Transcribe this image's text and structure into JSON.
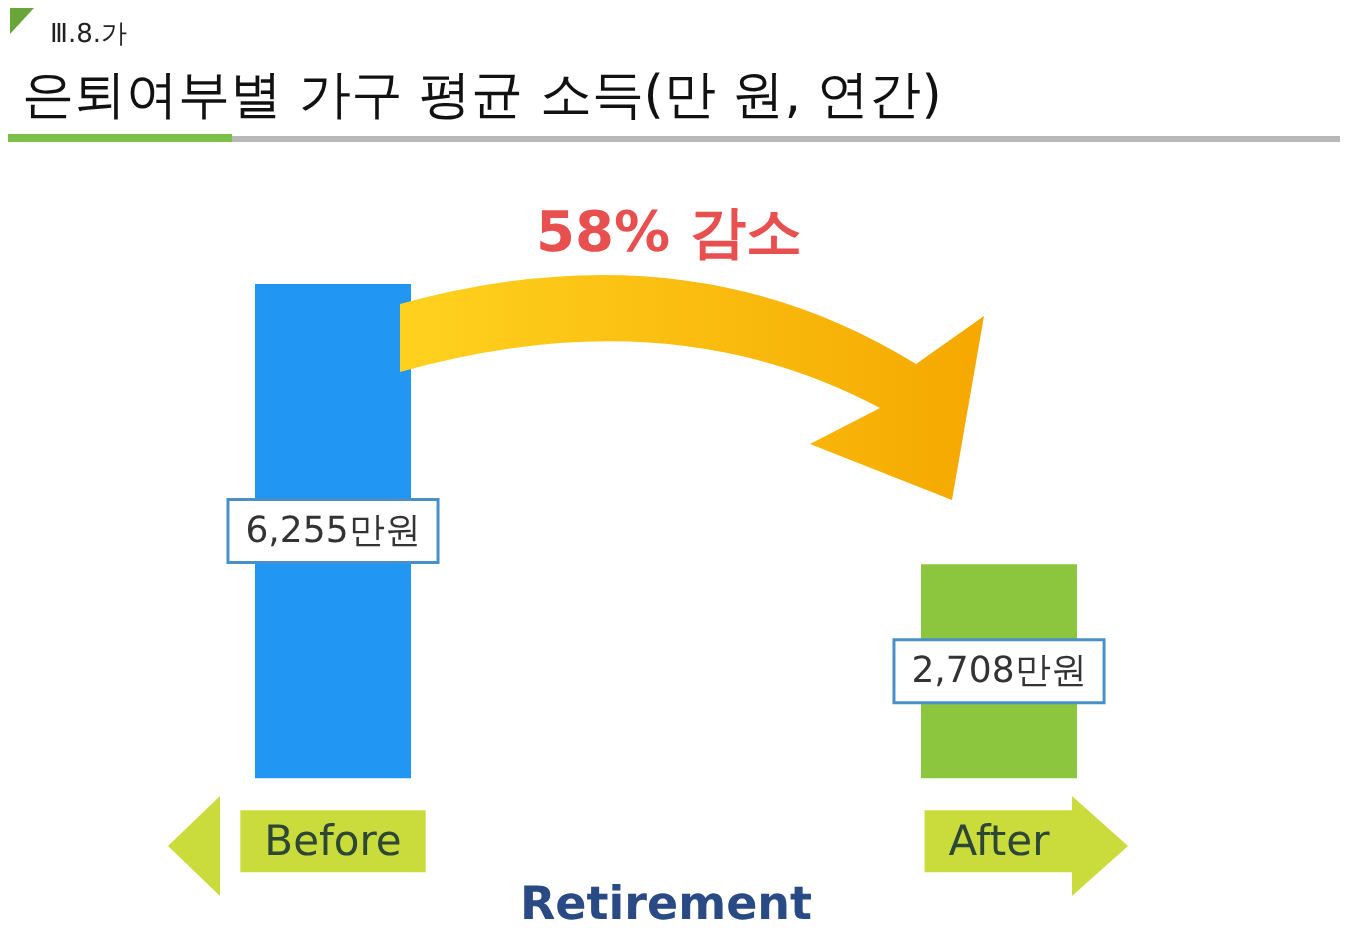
{
  "chart_data": {
    "type": "bar",
    "subtitle": "Ⅲ.8.가",
    "title": "은퇴여부별 가구 평균 소득(만 원, 연간)",
    "xlabel": "Retirement",
    "categories": [
      "Before",
      "After"
    ],
    "values": [
      6255,
      2708
    ],
    "colors": [
      "#2196f3",
      "#8cc63f"
    ],
    "value_labels": [
      "6,255만원",
      "2,708만원"
    ],
    "annotations": [
      "58% 감소"
    ]
  }
}
